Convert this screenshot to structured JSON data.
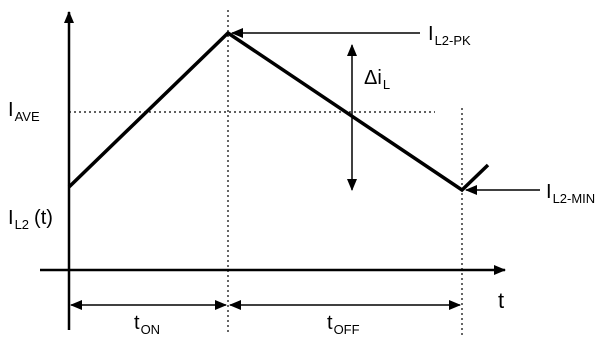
{
  "diagram": {
    "labels": {
      "i_ave": {
        "main": "I",
        "sub": "AVE"
      },
      "i_l2_pk": {
        "main": "I",
        "sub": "L2-PK"
      },
      "delta_il": {
        "main": "Δi",
        "sub": "L"
      },
      "i_l2_min": {
        "main": "I",
        "sub": "L2-MIN"
      },
      "i_l2_t": {
        "main": "I",
        "sub": "L2",
        "suffix": "(t)"
      },
      "t_axis": "t",
      "t_on": {
        "main": "t",
        "sub": "ON"
      },
      "t_off": {
        "main": "t",
        "sub": "OFF"
      }
    },
    "stroke_color": "#000000"
  }
}
